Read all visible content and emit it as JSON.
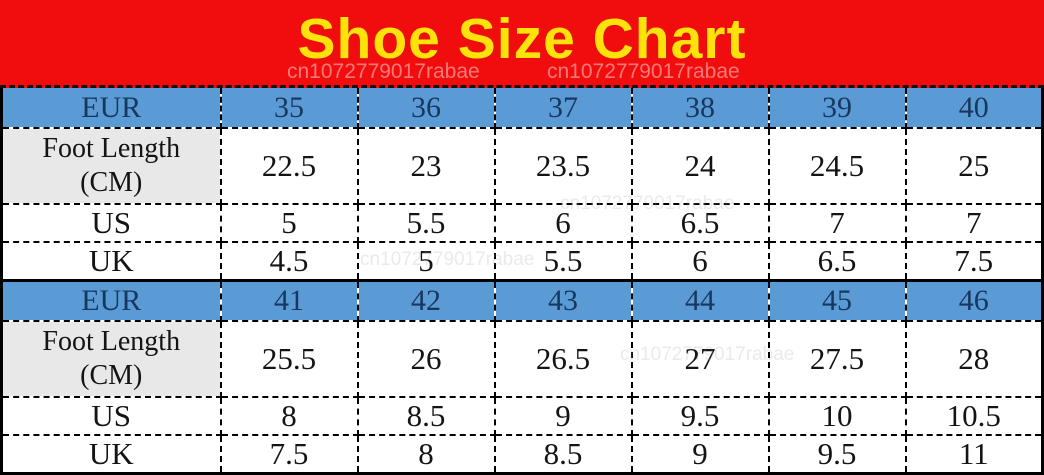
{
  "title": "Shoe Size Chart",
  "watermark": "cn1072779017rabae",
  "colors": {
    "banner_bg": "#F10D0D",
    "title_text": "#FFE20A",
    "eur_row_bg": "#5B9BD5",
    "eur_row_text": "#18375F",
    "foot_label_bg": "#E9E8E8",
    "grid_border": "#000000",
    "watermark_text": "#E0C9C9"
  },
  "chart_data": {
    "type": "table",
    "title": "Shoe Size Chart",
    "layout": "two stacked sections, each with EUR header row (blue) and rows Foot Length (CM), US, UK; dashed black grid, solid black divider between sections",
    "sections": [
      {
        "header_row": {
          "label": "EUR",
          "values": [
            "35",
            "36",
            "37",
            "38",
            "39",
            "40"
          ]
        },
        "rows": [
          {
            "label": "Foot Length (CM)",
            "label_lines": [
              "Foot Length",
              "(CM)"
            ],
            "values": [
              "22.5",
              "23",
              "23.5",
              "24",
              "24.5",
              "25"
            ]
          },
          {
            "label": "US",
            "values": [
              "5",
              "5.5",
              "6",
              "6.5",
              "7",
              "7"
            ]
          },
          {
            "label": "UK",
            "values": [
              "4.5",
              "5",
              "5.5",
              "6",
              "6.5",
              "7.5"
            ]
          }
        ]
      },
      {
        "header_row": {
          "label": "EUR",
          "values": [
            "41",
            "42",
            "43",
            "44",
            "45",
            "46"
          ]
        },
        "rows": [
          {
            "label": "Foot Length (CM)",
            "label_lines": [
              "Foot Length",
              "(CM)"
            ],
            "values": [
              "25.5",
              "26",
              "26.5",
              "27",
              "27.5",
              "28"
            ]
          },
          {
            "label": "US",
            "values": [
              "8",
              "8.5",
              "9",
              "9.5",
              "10",
              "10.5"
            ]
          },
          {
            "label": "UK",
            "values": [
              "7.5",
              "8",
              "8.5",
              "9",
              "9.5",
              "11"
            ]
          }
        ]
      }
    ]
  }
}
